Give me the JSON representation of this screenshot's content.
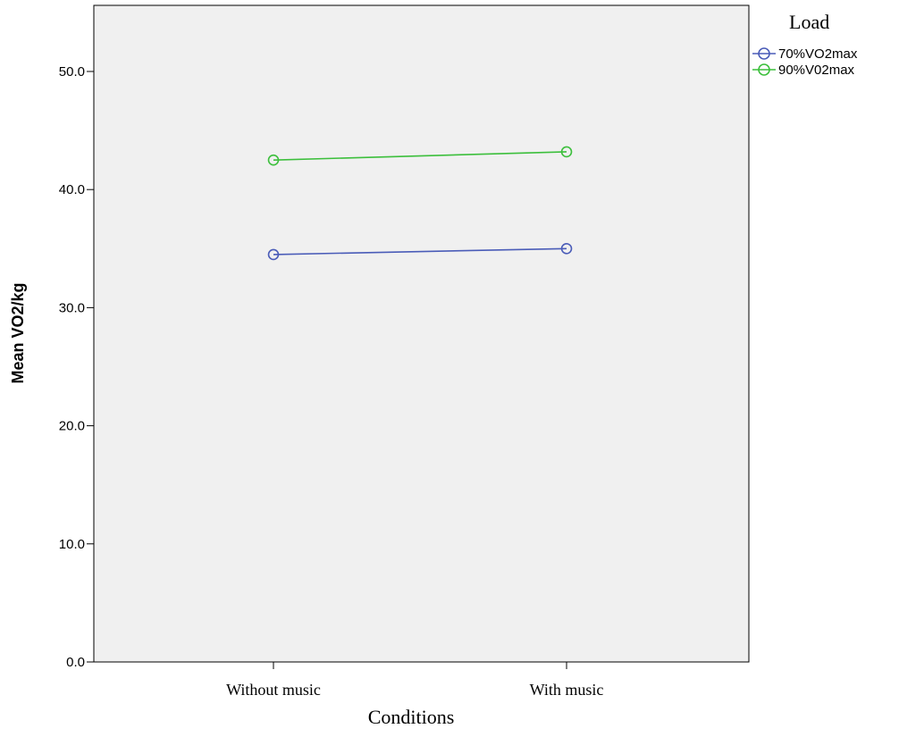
{
  "chart_data": {
    "type": "line",
    "categories": [
      "Without music",
      "With music"
    ],
    "series": [
      {
        "name": "70%VO2max",
        "values": [
          34.5,
          35.0
        ],
        "color": "#4a5cb8"
      },
      {
        "name": "90%V02max",
        "values": [
          42.5,
          43.2
        ],
        "color": "#3cbf3c"
      }
    ],
    "xlabel": "Conditions",
    "ylabel": "Mean VO2/kg",
    "ylim": [
      0,
      55
    ],
    "yticks": [
      "0.0",
      "10.0",
      "20.0",
      "30.0",
      "40.0",
      "50.0"
    ],
    "legend": {
      "title": "Load",
      "placement": "top-right-outside"
    },
    "plot_background": "#f0f0f0",
    "grid": false
  }
}
